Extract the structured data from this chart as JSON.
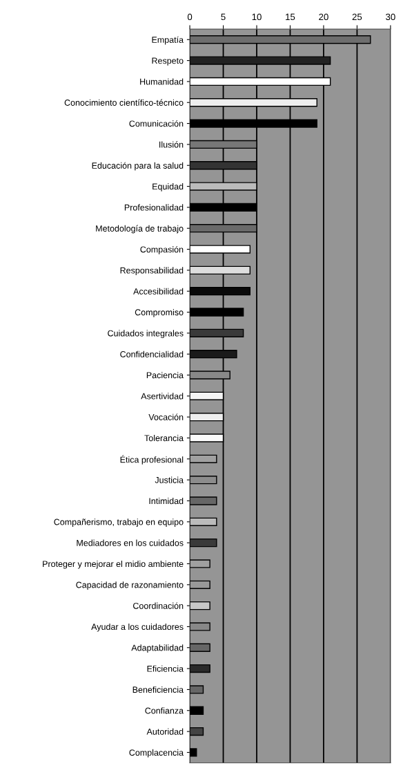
{
  "chart_data": {
    "type": "bar",
    "orientation": "horizontal",
    "categories": [
      "Empatía",
      "Respeto",
      "Humanidad",
      "Conocimiento científico-técnico",
      "Comunicación",
      "Ilusión",
      "Educación para la salud",
      "Equidad",
      "Profesionalidad",
      "Metodología de trabajo",
      "Compasión",
      "Responsabilidad",
      "Accesibilidad",
      "Compromiso",
      "Cuidados integrales",
      "Confidencialidad",
      "Paciencia",
      "Asertividad",
      "Vocación",
      "Tolerancia",
      "Ética profesional",
      "Justicia",
      "Intimidad",
      "Compañerismo, trabajo en equipo",
      "Mediadores en los cuidados",
      "Proteger y mejorar el midio ambiente",
      "Capacidad de razonamiento",
      "Coordinación",
      "Ayudar a los cuidadores",
      "Adaptabilidad",
      "Eficiencia",
      "Beneficiencia",
      "Confianza",
      "Autoridad",
      "Complacencia"
    ],
    "values": [
      27,
      21,
      21,
      19,
      19,
      10,
      10,
      10,
      10,
      10,
      9,
      9,
      9,
      8,
      8,
      7,
      6,
      5,
      5,
      5,
      4,
      4,
      4,
      4,
      4,
      3,
      3,
      3,
      3,
      3,
      3,
      2,
      2,
      2,
      1
    ],
    "colors": [
      "#6e6e6e",
      "#222222",
      "#ffffff",
      "#eeeeee",
      "#000000",
      "#777777",
      "#333333",
      "#bbbbbb",
      "#000000",
      "#6a6a6a",
      "#ffffff",
      "#dddddd",
      "#0a0a0a",
      "#000000",
      "#3a3a3a",
      "#1a1a1a",
      "#888888",
      "#f4f4f4",
      "#eeeeee",
      "#fafafa",
      "#a0a0a0",
      "#8c8c8c",
      "#666666",
      "#bbbbbb",
      "#3a3a3a",
      "#a0a0a0",
      "#999999",
      "#c8c8c8",
      "#888888",
      "#666666",
      "#2a2a2a",
      "#666666",
      "#000000",
      "#444444",
      "#000000"
    ],
    "xlim": [
      0,
      30
    ],
    "xticks": [
      0,
      5,
      10,
      15,
      20,
      25,
      30
    ],
    "grid": "x"
  }
}
